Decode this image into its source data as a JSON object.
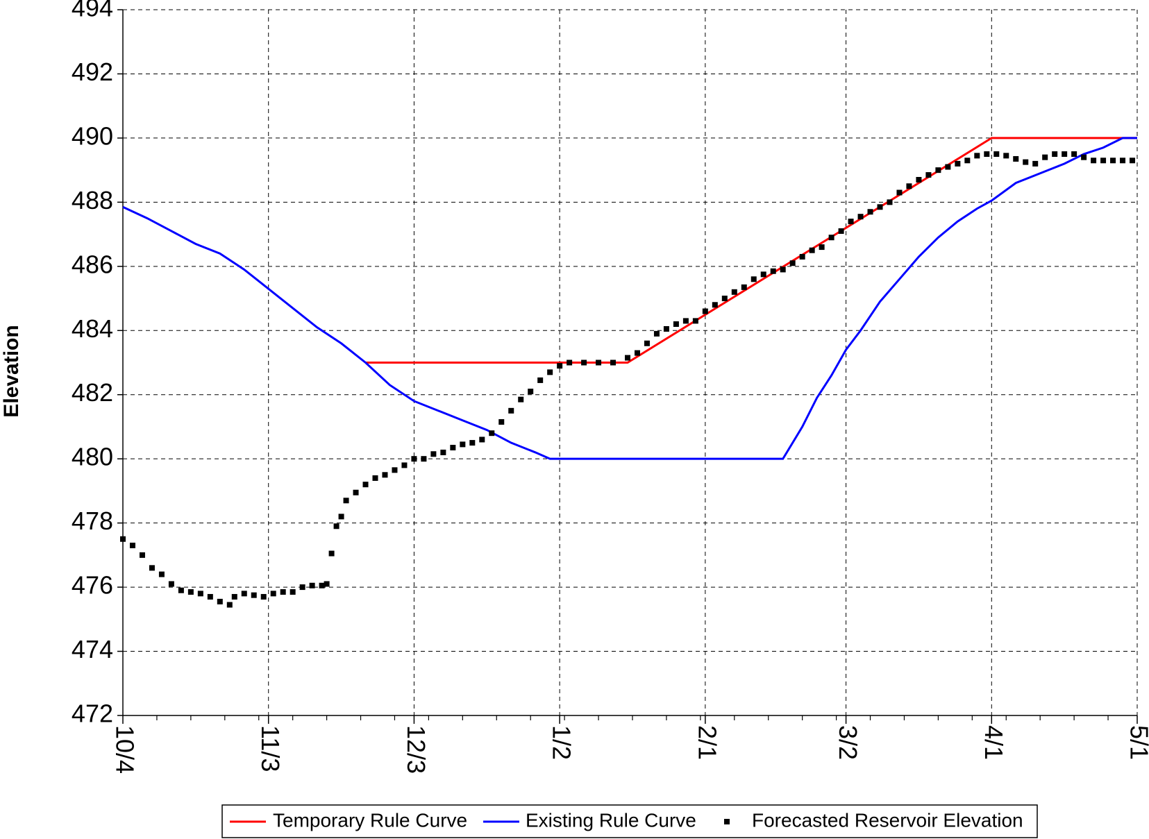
{
  "chart_data": {
    "type": "line",
    "ylabel": "Elevation",
    "xlim": [
      0,
      209
    ],
    "xticks": [
      {
        "value": 0,
        "label": "10/4"
      },
      {
        "value": 30,
        "label": "11/3"
      },
      {
        "value": 60,
        "label": "12/3"
      },
      {
        "value": 90,
        "label": "1/2"
      },
      {
        "value": 120,
        "label": "2/1"
      },
      {
        "value": 149,
        "label": "3/2"
      },
      {
        "value": 179,
        "label": "4/1"
      },
      {
        "value": 209,
        "label": "5/1"
      }
    ],
    "xminorticks": [
      7,
      14,
      21,
      28,
      35,
      42,
      49,
      56,
      63,
      70,
      77,
      84,
      91,
      98,
      105,
      112,
      119,
      126,
      133,
      140,
      147,
      154,
      161,
      168,
      175,
      182,
      189,
      196,
      203
    ],
    "ylim": [
      472,
      494
    ],
    "yticks": [
      472,
      474,
      476,
      478,
      480,
      482,
      484,
      486,
      488,
      490,
      492,
      494
    ],
    "grid": true,
    "legend": "bottom",
    "series": [
      {
        "name": "Temporary Rule Curve",
        "color": "#ff0000",
        "style": "line",
        "x": [
          50,
          92,
          104,
          179,
          209
        ],
        "values": [
          483,
          483,
          483,
          490,
          490
        ]
      },
      {
        "name": "Existing Rule Curve",
        "color": "#0000ff",
        "style": "line",
        "x": [
          0,
          5,
          10,
          15,
          20,
          25,
          30,
          35,
          40,
          45,
          50,
          55,
          60,
          65,
          70,
          75,
          80,
          85,
          88,
          136,
          140,
          143,
          146,
          149,
          152,
          156,
          160,
          164,
          168,
          172,
          176,
          179,
          184,
          189,
          194,
          198,
          202,
          206,
          209
        ],
        "values": [
          487.85,
          487.5,
          487.1,
          486.7,
          486.4,
          485.9,
          485.3,
          484.7,
          484.1,
          483.6,
          483.0,
          482.3,
          481.8,
          481.5,
          481.2,
          480.9,
          480.5,
          480.2,
          480.0,
          480.0,
          481.0,
          481.9,
          482.6,
          483.4,
          484.0,
          484.9,
          485.6,
          486.3,
          486.9,
          487.4,
          487.8,
          488.05,
          488.6,
          488.9,
          489.2,
          489.5,
          489.7,
          490,
          490
        ]
      },
      {
        "name": "Forecasted Reservoir Elevation",
        "color": "#000000",
        "style": "points",
        "x": [
          0,
          2,
          4,
          6,
          8,
          10,
          12,
          14,
          16,
          18,
          20,
          22,
          23,
          25,
          27,
          29,
          31,
          33,
          35,
          37,
          39,
          41,
          42,
          43,
          44,
          45,
          46,
          48,
          50,
          52,
          54,
          56,
          58,
          60,
          62,
          64,
          66,
          68,
          70,
          72,
          74,
          76,
          78,
          80,
          82,
          84,
          86,
          88,
          90,
          92,
          95,
          98,
          101,
          104,
          106,
          108,
          110,
          112,
          114,
          116,
          118,
          120,
          122,
          124,
          126,
          128,
          130,
          132,
          134,
          136,
          138,
          140,
          142,
          144,
          146,
          148,
          150,
          152,
          154,
          156,
          158,
          160,
          162,
          164,
          166,
          168,
          170,
          172,
          174,
          176,
          178,
          180,
          182,
          184,
          186,
          188,
          190,
          192,
          194,
          196,
          198,
          200,
          202,
          204,
          206,
          208
        ],
        "values": [
          477.5,
          477.3,
          477.0,
          476.6,
          476.4,
          476.1,
          475.9,
          475.85,
          475.8,
          475.7,
          475.55,
          475.45,
          475.7,
          475.8,
          475.75,
          475.7,
          475.8,
          475.85,
          475.85,
          476.0,
          476.05,
          476.05,
          476.1,
          477.05,
          477.9,
          478.2,
          478.7,
          478.95,
          479.2,
          479.4,
          479.5,
          479.65,
          479.8,
          480.0,
          480.0,
          480.15,
          480.2,
          480.35,
          480.45,
          480.5,
          480.6,
          480.8,
          481.15,
          481.5,
          481.85,
          482.1,
          482.45,
          482.7,
          482.9,
          483.0,
          483.0,
          483.0,
          483.0,
          483.15,
          483.3,
          483.6,
          483.9,
          484.05,
          484.2,
          484.3,
          484.3,
          484.6,
          484.8,
          485.0,
          485.2,
          485.35,
          485.6,
          485.75,
          485.85,
          485.9,
          486.1,
          486.3,
          486.5,
          486.6,
          486.9,
          487.1,
          487.4,
          487.55,
          487.7,
          487.85,
          488.0,
          488.3,
          488.5,
          488.7,
          488.85,
          489.0,
          489.1,
          489.2,
          489.3,
          489.45,
          489.5,
          489.5,
          489.45,
          489.35,
          489.25,
          489.2,
          489.4,
          489.5,
          489.5,
          489.5,
          489.4,
          489.3,
          489.3,
          489.3,
          489.3,
          489.3
        ]
      }
    ]
  }
}
